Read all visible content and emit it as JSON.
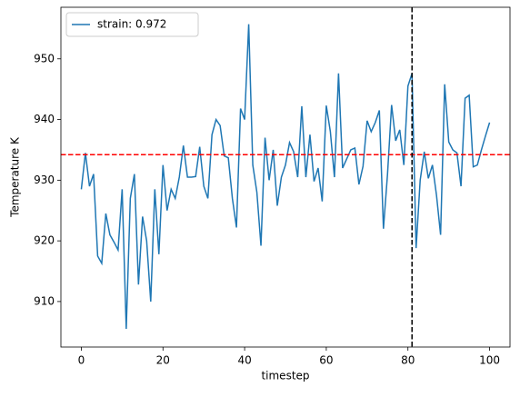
{
  "chart_data": {
    "type": "line",
    "xlabel": "timestep",
    "ylabel": "Temperature K",
    "x": [
      0,
      1,
      2,
      3,
      4,
      5,
      6,
      7,
      8,
      9,
      10,
      11,
      12,
      13,
      14,
      15,
      16,
      17,
      18,
      19,
      20,
      21,
      22,
      23,
      24,
      25,
      26,
      27,
      28,
      29,
      30,
      31,
      32,
      33,
      34,
      35,
      36,
      37,
      38,
      39,
      40,
      41,
      42,
      43,
      44,
      45,
      46,
      47,
      48,
      49,
      50,
      51,
      52,
      53,
      54,
      55,
      56,
      57,
      58,
      59,
      60,
      61,
      62,
      63,
      64,
      65,
      66,
      67,
      68,
      69,
      70,
      71,
      72,
      73,
      74,
      75,
      76,
      77,
      78,
      79,
      80,
      81,
      82,
      83,
      84,
      85,
      86,
      87,
      88,
      89,
      90,
      91,
      92,
      93,
      94,
      95,
      96,
      97,
      98,
      99,
      100
    ],
    "series": [
      {
        "name": "strain: 0.972",
        "color": "#1f77b4",
        "values": [
          928.5,
          934.5,
          929,
          931,
          917.5,
          916.3,
          924.5,
          921,
          919.8,
          918.5,
          928.5,
          905.5,
          927,
          931,
          912.8,
          924,
          920,
          910,
          928.5,
          917.8,
          932.5,
          925,
          928.5,
          927,
          930.5,
          935.7,
          930.5,
          930.5,
          930.6,
          935.5,
          929,
          927,
          937.5,
          940,
          939,
          934,
          933.7,
          927,
          922.2,
          941.8,
          940,
          955.7,
          932.5,
          928,
          919.2,
          937,
          930,
          935,
          925.8,
          930.5,
          932.5,
          936.2,
          934.7,
          930.5,
          942.2,
          930.5,
          937.5,
          929.8,
          932,
          926.5,
          942.3,
          938,
          930.5,
          947.6,
          932,
          933.5,
          935,
          935.3,
          929.3,
          932.3,
          939.8,
          938,
          939.5,
          941.5,
          922,
          931,
          942.4,
          936.5,
          938.3,
          932.5,
          945.5,
          947.6,
          918.8,
          930,
          934.7,
          930.3,
          932.5,
          927.5,
          921,
          945.8,
          936.3,
          935,
          934.5,
          929,
          943.5,
          944,
          932.2,
          932.5,
          935,
          937.3,
          939.5
        ]
      }
    ],
    "hline": {
      "value": 934.2,
      "color": "red"
    },
    "vline": {
      "value": 81,
      "color": "black"
    },
    "xlim": [
      -5,
      105
    ],
    "xticks": [
      0,
      20,
      40,
      60,
      80,
      100
    ],
    "ylim": [
      902.5,
      958.5
    ],
    "yticks": [
      910,
      920,
      930,
      940,
      950
    ],
    "legend": "upper left"
  }
}
